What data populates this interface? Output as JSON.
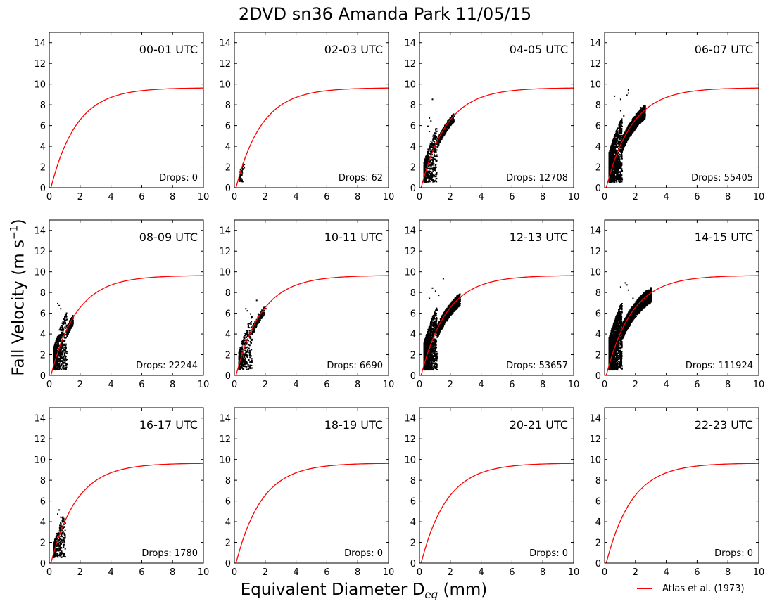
{
  "title": "2DVD sn36 Amanda Park 11/05/15",
  "ylabel_main": "Fall Velocity (m s",
  "ylabel_sup": "−1",
  "ylabel_close": ")",
  "xlabel_main": "Equivalent Diameter D",
  "xlabel_sub": "eq",
  "xlabel_close": " (mm)",
  "legend_label": "Atlas et al. (1973)",
  "chart_data": {
    "type": "scatter",
    "xlim": [
      0,
      10
    ],
    "ylim": [
      0,
      15
    ],
    "xticks": [
      "0",
      "2",
      "4",
      "6",
      "8",
      "10"
    ],
    "yticks": [
      "0",
      "2",
      "4",
      "6",
      "8",
      "10",
      "12",
      "14"
    ],
    "grid": false,
    "legend_placement": "bottom-right",
    "reference_curve": {
      "name": "Atlas et al. (1973)",
      "formula": "v = 9.65 - 10.3 exp(-0.6 D)",
      "color": "#ff0000"
    },
    "panels": [
      {
        "label": "00-01 UTC",
        "drops_text": "Drops: 0",
        "drops": 0,
        "points": []
      },
      {
        "label": "02-03 UTC",
        "drops_text": "Drops: 62",
        "drops": 62,
        "points": [
          [
            0.3,
            1.6
          ],
          [
            0.35,
            1.8
          ],
          [
            0.4,
            1.9
          ],
          [
            0.45,
            2.0
          ],
          [
            0.5,
            2.1
          ],
          [
            0.55,
            2.2
          ],
          [
            0.6,
            2.3
          ],
          [
            0.5,
            1.9
          ],
          [
            0.45,
            1.7
          ],
          [
            0.6,
            2.0
          ],
          [
            0.55,
            2.4
          ],
          [
            0.35,
            1.5
          ]
        ]
      },
      {
        "label": "04-05 UTC",
        "drops_text": "Drops: 12708",
        "drops": 12708,
        "points": [
          [
            0.8,
            8.6
          ],
          [
            0.6,
            6.8
          ],
          [
            0.7,
            6.5
          ],
          [
            0.5,
            6.0
          ],
          [
            0.6,
            5.5
          ],
          [
            1.2,
            5.0
          ],
          [
            1.5,
            5.6
          ],
          [
            1.8,
            6.2
          ],
          [
            2.0,
            6.7
          ],
          [
            2.2,
            7.0
          ]
        ]
      },
      {
        "label": "06-07 UTC",
        "drops_text": "Drops: 55405",
        "drops": 55405,
        "points": [
          [
            1.5,
            9.5
          ],
          [
            0.6,
            8.9
          ],
          [
            1.0,
            8.6
          ],
          [
            1.4,
            9.0
          ],
          [
            1.5,
            9.2
          ],
          [
            2.0,
            7.2
          ],
          [
            2.3,
            7.8
          ],
          [
            2.5,
            8.0
          ],
          [
            1.2,
            7.0
          ],
          [
            1.0,
            7.5
          ]
        ]
      },
      {
        "label": "08-09 UTC",
        "drops_text": "Drops: 22244",
        "drops": 22244,
        "points": [
          [
            0.5,
            7.0
          ],
          [
            0.6,
            6.8
          ],
          [
            0.7,
            6.5
          ],
          [
            1.2,
            5.0
          ],
          [
            1.4,
            5.5
          ],
          [
            1.5,
            5.7
          ]
        ]
      },
      {
        "label": "10-11 UTC",
        "drops_text": "Drops: 6690",
        "drops": 6690,
        "points": [
          [
            1.4,
            7.3
          ],
          [
            0.7,
            6.5
          ],
          [
            0.8,
            6.3
          ],
          [
            1.0,
            6.0
          ],
          [
            1.5,
            6.0
          ],
          [
            1.8,
            6.3
          ],
          [
            2.0,
            6.5
          ]
        ]
      },
      {
        "label": "12-13 UTC",
        "drops_text": "Drops: 53657",
        "drops": 53657,
        "points": [
          [
            1.5,
            9.4
          ],
          [
            0.8,
            8.5
          ],
          [
            1.0,
            8.2
          ],
          [
            1.2,
            7.8
          ],
          [
            2.0,
            6.0
          ],
          [
            2.5,
            7.0
          ],
          [
            2.6,
            7.2
          ],
          [
            0.6,
            7.5
          ]
        ]
      },
      {
        "label": "14-15 UTC",
        "drops_text": "Drops: 111924",
        "drops": 111924,
        "points": [
          [
            1.3,
            9.0
          ],
          [
            1.0,
            8.6
          ],
          [
            1.5,
            8.3
          ],
          [
            2.5,
            8.0
          ],
          [
            3.0,
            8.5
          ],
          [
            2.8,
            8.3
          ],
          [
            1.8,
            7.5
          ],
          [
            1.4,
            8.8
          ]
        ]
      },
      {
        "label": "16-17 UTC",
        "drops_text": "Drops: 1780",
        "drops": 1780,
        "points": [
          [
            0.6,
            5.2
          ],
          [
            0.5,
            4.8
          ],
          [
            0.7,
            4.5
          ],
          [
            0.8,
            4.2
          ],
          [
            0.9,
            3.8
          ],
          [
            1.0,
            3.9
          ]
        ]
      },
      {
        "label": "18-19 UTC",
        "drops_text": "Drops: 0",
        "drops": 0,
        "points": []
      },
      {
        "label": "20-21 UTC",
        "drops_text": "Drops: 0",
        "drops": 0,
        "points": []
      },
      {
        "label": "22-23 UTC",
        "drops_text": "Drops: 0",
        "drops": 0,
        "points": []
      }
    ],
    "point_clouds": [
      {
        "panel": 1,
        "dmin": 0.3,
        "dmax": 0.62,
        "n": 25,
        "spread": 0.25,
        "seed": 11
      },
      {
        "panel": 2,
        "dmin": 0.25,
        "dmax": 2.2,
        "n": 900,
        "spread": 1.4,
        "seed": 23
      },
      {
        "panel": 3,
        "dmin": 0.25,
        "dmax": 2.6,
        "n": 2400,
        "spread": 2.2,
        "seed": 37
      },
      {
        "panel": 4,
        "dmin": 0.25,
        "dmax": 1.5,
        "n": 900,
        "spread": 1.6,
        "seed": 41
      },
      {
        "panel": 5,
        "dmin": 0.25,
        "dmax": 1.9,
        "n": 500,
        "spread": 1.3,
        "seed": 53
      },
      {
        "panel": 6,
        "dmin": 0.25,
        "dmax": 2.6,
        "n": 2200,
        "spread": 2.0,
        "seed": 67
      },
      {
        "panel": 7,
        "dmin": 0.25,
        "dmax": 3.0,
        "n": 3200,
        "spread": 2.4,
        "seed": 71
      },
      {
        "panel": 8,
        "dmin": 0.25,
        "dmax": 1.0,
        "n": 300,
        "spread": 1.0,
        "seed": 83
      }
    ]
  }
}
